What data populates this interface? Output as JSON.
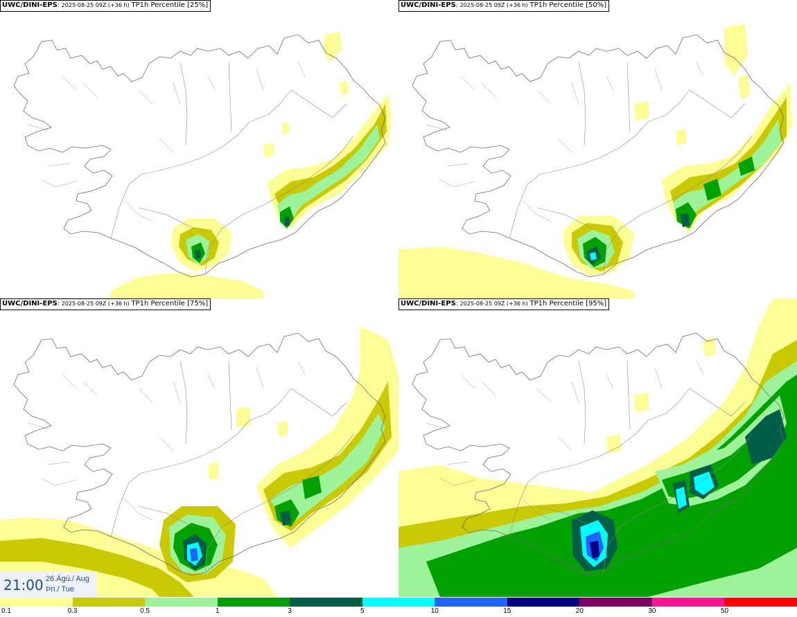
{
  "panels": [
    {
      "model": "UWC/DINI-EPS",
      "run": "2025-08-25 09Z (+36 h)",
      "field": "TP1h Percentile [25%]"
    },
    {
      "model": "UWC/DINI-EPS",
      "run": "2025-08-25 09Z (+36 h)",
      "field": "TP1h Percentile [50%]"
    },
    {
      "model": "UWC/DINI-EPS",
      "run": "2025-08-25 09Z (+36 h)",
      "field": "TP1h Percentile [75%]"
    },
    {
      "model": "UWC/DINI-EPS",
      "run": "2025-08-25 09Z (+36 h)",
      "field": "TP1h Percentile [95%]"
    }
  ],
  "valid_time": {
    "time": "21:00",
    "date_line1": "26.Ágú./ Aug",
    "date_line2": "Þri./ Tue"
  },
  "colorbar": {
    "labels": [
      "0.1",
      "0.3",
      "0.5",
      "1",
      "3",
      "5",
      "10",
      "15",
      "20",
      "30",
      "50"
    ],
    "colors": [
      "#fdfd96",
      "#c9c900",
      "#9ef29a",
      "#00a000",
      "#005e46",
      "#00ffff",
      "#1e64ff",
      "#000080",
      "#7f0064",
      "#ff1493",
      "#ff0000"
    ]
  }
}
